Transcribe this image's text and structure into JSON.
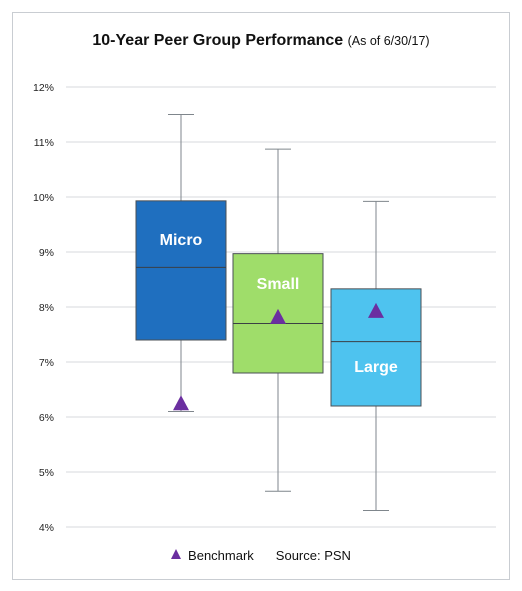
{
  "chart_data": {
    "type": "box",
    "title": "10-Year Peer Group Performance",
    "subtitle": "(As of 6/30/17)",
    "y_ticks": [
      "4%",
      "5%",
      "6%",
      "7%",
      "8%",
      "9%",
      "10%",
      "11%",
      "12%"
    ],
    "ylim": [
      4,
      12
    ],
    "grid": true,
    "series": [
      {
        "name": "Micro",
        "whisker_low": 6.1,
        "q1": 7.4,
        "median": 8.72,
        "q3": 9.93,
        "whisker_high": 11.5,
        "benchmark": 6.25,
        "color": "#1f6fbf"
      },
      {
        "name": "Small",
        "whisker_low": 4.65,
        "q1": 6.8,
        "median": 7.7,
        "q3": 8.97,
        "whisker_high": 10.87,
        "benchmark": 7.82,
        "color": "#9fdd6a"
      },
      {
        "name": "Large",
        "whisker_low": 4.3,
        "q1": 6.2,
        "median": 7.37,
        "q3": 8.33,
        "whisker_high": 9.92,
        "benchmark": 7.93,
        "color": "#4ec3ef"
      }
    ],
    "benchmark_color": "#6b2fa0"
  },
  "legend": {
    "benchmark_label": "Benchmark",
    "source": "Source: PSN"
  }
}
